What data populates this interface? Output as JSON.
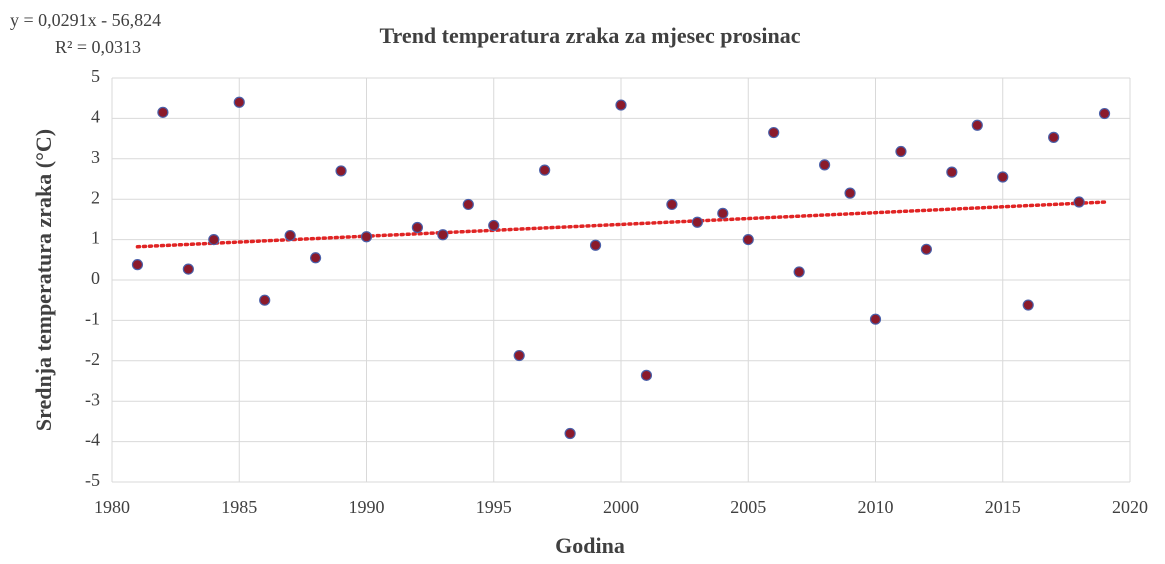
{
  "chart_data": {
    "type": "scatter",
    "title": "Trend temperatura zraka za mjesec prosinac",
    "xlabel": "Godina",
    "ylabel": "Srednja temperatura zraka (°C)",
    "x": [
      1981,
      1982,
      1983,
      1984,
      1985,
      1986,
      1987,
      1988,
      1989,
      1990,
      1992,
      1993,
      1994,
      1995,
      1996,
      1997,
      1998,
      1999,
      2000,
      2001,
      2002,
      2003,
      2004,
      2005,
      2006,
      2007,
      2008,
      2009,
      2010,
      2011,
      2012,
      2013,
      2014,
      2015,
      2016,
      2017,
      2018,
      2019
    ],
    "values": [
      0.38,
      4.15,
      0.27,
      1.0,
      4.4,
      -0.5,
      1.1,
      0.55,
      2.7,
      1.07,
      1.3,
      1.12,
      1.87,
      1.35,
      -1.87,
      2.72,
      -3.8,
      0.86,
      4.33,
      -2.36,
      1.87,
      1.43,
      1.65,
      1.0,
      3.65,
      0.2,
      2.85,
      2.15,
      -0.97,
      3.18,
      0.76,
      2.67,
      3.83,
      2.55,
      -0.62,
      3.53,
      1.93,
      4.12
    ],
    "color": "#8b1a2b",
    "edge_color": "#4a5fa8",
    "trendline": {
      "slope": 0.0291,
      "intercept": -56.824,
      "color": "#e02424",
      "equation": "y = 0,0291x - 56,824",
      "r2": "R² = 0,0313"
    },
    "xlim": [
      1980,
      2020
    ],
    "xticks": [
      1980,
      1985,
      1990,
      1995,
      2000,
      2005,
      2010,
      2015,
      2020
    ],
    "ylim": [
      -5,
      5
    ],
    "yticks": [
      -5,
      -4,
      -3,
      -2,
      -1,
      0,
      1,
      2,
      3,
      4,
      5
    ],
    "grid": true
  }
}
